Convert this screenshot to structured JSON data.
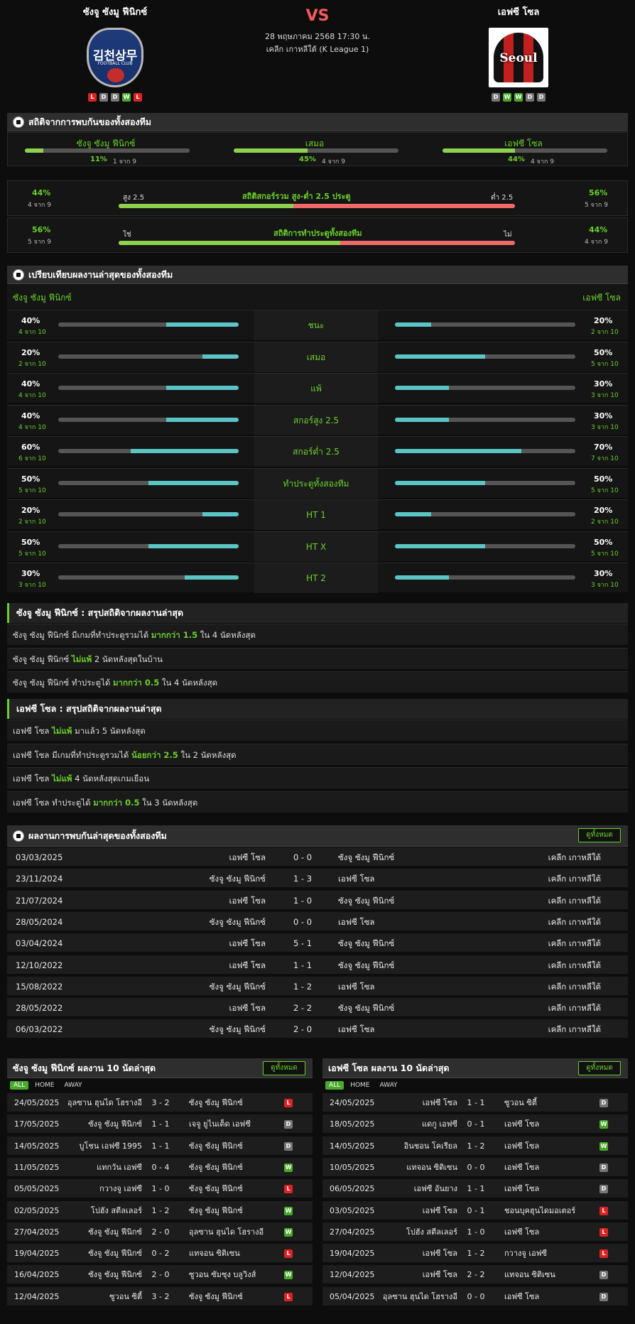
{
  "match": {
    "home_name": "ซังจู ซังมู ฟีนิกซ์",
    "away_name": "เอฟซี โซล",
    "vs": "VS",
    "date": "28 พฤษภาคม 2568 17:30 น.",
    "league": "เคลีก เกาหลีใต้ (K League 1)",
    "home_logo_text": "김천상무",
    "home_logo_sub": "FOOTBALL CLUB",
    "away_logo_text": "Seoul",
    "home_form": [
      "L",
      "D",
      "D",
      "W",
      "L"
    ],
    "away_form": [
      "D",
      "W",
      "W",
      "D",
      "D"
    ]
  },
  "h2h_stats": {
    "title": "สถิติจากการพบกันของทั้งสองทีม",
    "items": [
      {
        "label": "ซังจู ซังมู ฟีนิกซ์",
        "pct": "11%",
        "sub": "1 จาก 9",
        "value": 11
      },
      {
        "label": "เสมอ",
        "pct": "45%",
        "sub": "4 จาก 9",
        "value": 45
      },
      {
        "label": "เอฟซี โซล",
        "pct": "44%",
        "sub": "4 จาก 9",
        "value": 44
      }
    ],
    "goals": {
      "title": "สถิติสกอร์รวม สูง-ต่ำ 2.5 ประตู",
      "left_pct": "44%",
      "left_sub": "4 จาก 9",
      "left_label": "สูง 2.5",
      "right_pct": "56%",
      "right_sub": "5 จาก 9",
      "right_label": "ต่ำ 2.5",
      "value": 44
    },
    "btts": {
      "title": "สถิติการทำประตูทั้งสองทีม",
      "left_pct": "56%",
      "left_sub": "5 จาก 9",
      "left_label": "ใช่",
      "right_pct": "44%",
      "right_sub": "4 จาก 9",
      "right_label": "ไม่",
      "value": 56
    }
  },
  "compare": {
    "title": "เปรียบเทียบผลงานล่าสุดของทั้งสองทีม",
    "home": "ซังจู ซังมู ฟีนิกซ์",
    "away": "เอฟซี โซล",
    "rows": [
      {
        "label": "ชนะ",
        "hp": "40%",
        "hs": "4 จาก 10",
        "hv": 40,
        "ap": "20%",
        "as": "2 จาก 10",
        "av": 20
      },
      {
        "label": "เสมอ",
        "hp": "20%",
        "hs": "2 จาก 10",
        "hv": 20,
        "ap": "50%",
        "as": "5 จาก 10",
        "av": 50
      },
      {
        "label": "แพ้",
        "hp": "40%",
        "hs": "4 จาก 10",
        "hv": 40,
        "ap": "30%",
        "as": "3 จาก 10",
        "av": 30
      },
      {
        "label": "สกอร์สูง 2.5",
        "hp": "40%",
        "hs": "4 จาก 10",
        "hv": 40,
        "ap": "30%",
        "as": "3 จาก 10",
        "av": 30
      },
      {
        "label": "สกอร์ต่ำ 2.5",
        "hp": "60%",
        "hs": "6 จาก 10",
        "hv": 60,
        "ap": "70%",
        "as": "7 จาก 10",
        "av": 70
      },
      {
        "label": "ทำประตูทั้งสองทีม",
        "hp": "50%",
        "hs": "5 จาก 10",
        "hv": 50,
        "ap": "50%",
        "as": "5 จาก 10",
        "av": 50
      },
      {
        "label": "HT 1",
        "hp": "20%",
        "hs": "2 จาก 10",
        "hv": 20,
        "ap": "20%",
        "as": "2 จาก 10",
        "av": 20
      },
      {
        "label": "HT X",
        "hp": "50%",
        "hs": "5 จาก 10",
        "hv": 50,
        "ap": "50%",
        "as": "5 จาก 10",
        "av": 50
      },
      {
        "label": "HT 2",
        "hp": "30%",
        "hs": "3 จาก 10",
        "hv": 30,
        "ap": "30%",
        "as": "3 จาก 10",
        "av": 30
      }
    ]
  },
  "home_summary": {
    "title": "ซังจู ซังมู ฟีนิกซ์ : สรุปสถิติจากผลงานล่าสุด",
    "lines": [
      [
        "ซังจู ซังมู ฟีนิกซ์  มีเกมที่ทำประตูรวมได้ ",
        "มากกว่า 1.5",
        " ใน 4 นัดหลังสุด"
      ],
      [
        "ซังจู ซังมู ฟีนิกซ์ ",
        "ไม่แพ้",
        " 2 นัดหลังสุดในบ้าน"
      ],
      [
        "ซังจู ซังมู ฟีนิกซ์  ทำประตูได้ ",
        "มากกว่า 0.5",
        " ใน 4 นัดหลังสุด"
      ]
    ]
  },
  "away_summary": {
    "title": "เอฟซี โซล : สรุปสถิติจากผลงานล่าสุด",
    "lines": [
      [
        "เอฟซี โซล ",
        "ไม่แพ้",
        " มาแล้ว 5 นัดหลังสุด"
      ],
      [
        "เอฟซี โซล  มีเกมที่ทำประตูรวมได้ ",
        "น้อยกว่า 2.5",
        " ใน 2 นัดหลังสุด"
      ],
      [
        "เอฟซี โซล ",
        "ไม่แพ้",
        " 4 นัดหลังสุดเกมเยือน"
      ],
      [
        "เอฟซี โซล  ทำประตูได้ ",
        "มากกว่า 0.5",
        " ใน 3 นัดหลังสุด"
      ]
    ]
  },
  "h2h_results": {
    "title": "ผลงานการพบกันล่าสุดของทั้งสองทีม",
    "see_all": "ดูทั้งหมด",
    "rows": [
      [
        "03/03/2025",
        "เอฟซี โซล",
        "0 - 0",
        "ซังจู ซังมู ฟีนิกซ์",
        "เคลีก เกาหลีใต้"
      ],
      [
        "23/11/2024",
        "ซังจู ซังมู ฟีนิกซ์",
        "1 - 3",
        "เอฟซี โซล",
        "เคลีก เกาหลีใต้"
      ],
      [
        "21/07/2024",
        "เอฟซี โซล",
        "1 - 0",
        "ซังจู ซังมู ฟีนิกซ์",
        "เคลีก เกาหลีใต้"
      ],
      [
        "28/05/2024",
        "ซังจู ซังมู ฟีนิกซ์",
        "0 - 0",
        "เอฟซี โซล",
        "เคลีก เกาหลีใต้"
      ],
      [
        "03/04/2024",
        "เอฟซี โซล",
        "5 - 1",
        "ซังจู ซังมู ฟีนิกซ์",
        "เคลีก เกาหลีใต้"
      ],
      [
        "12/10/2022",
        "เอฟซี โซล",
        "1 - 1",
        "ซังจู ซังมู ฟีนิกซ์",
        "เคลีก เกาหลีใต้"
      ],
      [
        "15/08/2022",
        "ซังจู ซังมู ฟีนิกซ์",
        "1 - 2",
        "เอฟซี โซล",
        "เคลีก เกาหลีใต้"
      ],
      [
        "28/05/2022",
        "เอฟซี โซล",
        "2 - 2",
        "ซังจู ซังมู ฟีนิกซ์",
        "เคลีก เกาหลีใต้"
      ],
      [
        "06/03/2022",
        "ซังจู ซังมู ฟีนิกซ์",
        "2 - 0",
        "เอฟซี โซล",
        "เคลีก เกาหลีใต้"
      ]
    ]
  },
  "home_last10": {
    "title": "ซังจู ซังมู ฟีนิกซ์ ผลงาน 10 นัดล่าสุด",
    "see_all": "ดูทั้งหมด",
    "tabs": [
      "ALL",
      "HOME",
      "AWAY"
    ],
    "rows": [
      [
        "24/05/2025",
        "อุลซาน ฮุนได โฮรางอี",
        "3 - 2",
        "ซังจู ซังมู ฟีนิกซ์",
        "L"
      ],
      [
        "17/05/2025",
        "ซังจู ซังมู ฟีนิกซ์",
        "1 - 1",
        "เจจู ยูไนเต็ด เอฟซี",
        "D"
      ],
      [
        "14/05/2025",
        "บูโชน เอฟซี 1995",
        "1 - 1",
        "ซังจู ซังมู ฟีนิกซ์",
        "D"
      ],
      [
        "11/05/2025",
        "แทกวัน เอฟซี",
        "0 - 4",
        "ซังจู ซังมู ฟีนิกซ์",
        "W"
      ],
      [
        "05/05/2025",
        "กวางจู เอฟซี",
        "1 - 0",
        "ซังจู ซังมู ฟีนิกซ์",
        "L"
      ],
      [
        "02/05/2025",
        "โปฮัง สตีลเลอร์",
        "1 - 2",
        "ซังจู ซังมู ฟีนิกซ์",
        "W"
      ],
      [
        "27/04/2025",
        "ซังจู ซังมู ฟีนิกซ์",
        "2 - 0",
        "อุลซาน ฮุนได โฮรางอี",
        "W"
      ],
      [
        "19/04/2025",
        "ซังจู ซังมู ฟีนิกซ์",
        "0 - 2",
        "แทจอน ซิติเซน",
        "L"
      ],
      [
        "16/04/2025",
        "ซังจู ซังมู ฟีนิกซ์",
        "2 - 0",
        "ซูวอน ซัมซุง บลูวิงส์",
        "W"
      ],
      [
        "12/04/2025",
        "ซูวอน ซิตี้",
        "3 - 2",
        "ซังจู ซังมู ฟีนิกซ์",
        "L"
      ]
    ]
  },
  "away_last10": {
    "title": "เอฟซี โซล ผลงาน 10 นัดล่าสุด",
    "see_all": "ดูทั้งหมด",
    "tabs": [
      "ALL",
      "HOME",
      "AWAY"
    ],
    "rows": [
      [
        "24/05/2025",
        "เอฟซี โซล",
        "1 - 1",
        "ซูวอน ซิตี้",
        "D"
      ],
      [
        "18/05/2025",
        "แดกู เอฟซี",
        "0 - 1",
        "เอฟซี โซล",
        "W"
      ],
      [
        "14/05/2025",
        "อินชอน โคเรียล",
        "1 - 2",
        "เอฟซี โซล",
        "W"
      ],
      [
        "10/05/2025",
        "แทจอน ซิติเซน",
        "0 - 0",
        "เอฟซี โซล",
        "D"
      ],
      [
        "06/05/2025",
        "เอฟซี อันยาง",
        "1 - 1",
        "เอฟซี โซล",
        "D"
      ],
      [
        "03/05/2025",
        "เอฟซี โซล",
        "0 - 1",
        "ชอนบุคฮุนไดมอเตอร์",
        "L"
      ],
      [
        "27/04/2025",
        "โปฮัง สตีลเลอร์",
        "1 - 0",
        "เอฟซี โซล",
        "L"
      ],
      [
        "19/04/2025",
        "เอฟซี โซล",
        "1 - 2",
        "กวางจู เอฟซี",
        "L"
      ],
      [
        "12/04/2025",
        "เอฟซี โซล",
        "2 - 2",
        "แทจอน ซิติเซน",
        "D"
      ],
      [
        "05/04/2025",
        "อุลซาน ฮุนได โฮรางอี",
        "0 - 0",
        "เอฟซี โซล",
        "D"
      ]
    ]
  }
}
